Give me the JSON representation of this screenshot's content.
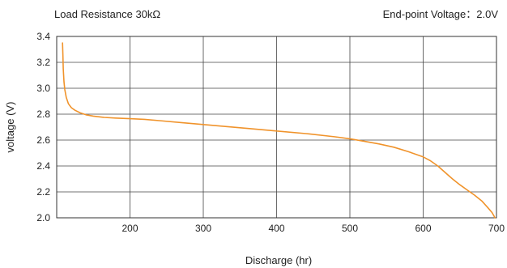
{
  "chart_data": {
    "type": "line",
    "title": "",
    "annotations": [
      "Load Resistance 30kΩ",
      "End-point Voltage：2.0V"
    ],
    "xlabel": "Discharge (hr)",
    "ylabel": "voltage (V)",
    "xlim": [
      100,
      700
    ],
    "ylim": [
      2.0,
      3.4
    ],
    "x_ticks": [
      200,
      300,
      400,
      500,
      600,
      700
    ],
    "y_ticks": [
      "2.0",
      "2.2",
      "2.4",
      "2.6",
      "2.8",
      "3.0",
      "3.2",
      "3.4"
    ],
    "grid": true,
    "legend": "none",
    "series": [
      {
        "color": "#F0932B",
        "x": [
          108,
          108.5,
          109,
          110,
          111,
          113,
          116,
          120,
          125,
          132,
          140,
          150,
          165,
          180,
          200,
          220,
          240,
          270,
          300,
          330,
          360,
          400,
          440,
          480,
          500,
          520,
          540,
          560,
          580,
          600,
          610,
          620,
          630,
          640,
          650,
          660,
          670,
          680,
          688,
          694,
          698
        ],
        "y": [
          3.35,
          3.25,
          3.15,
          3.05,
          2.99,
          2.93,
          2.88,
          2.85,
          2.83,
          2.81,
          2.795,
          2.785,
          2.775,
          2.77,
          2.765,
          2.76,
          2.75,
          2.735,
          2.72,
          2.705,
          2.69,
          2.67,
          2.65,
          2.625,
          2.61,
          2.59,
          2.57,
          2.545,
          2.51,
          2.47,
          2.44,
          2.4,
          2.35,
          2.3,
          2.255,
          2.215,
          2.175,
          2.13,
          2.08,
          2.04,
          2.0
        ]
      }
    ]
  }
}
